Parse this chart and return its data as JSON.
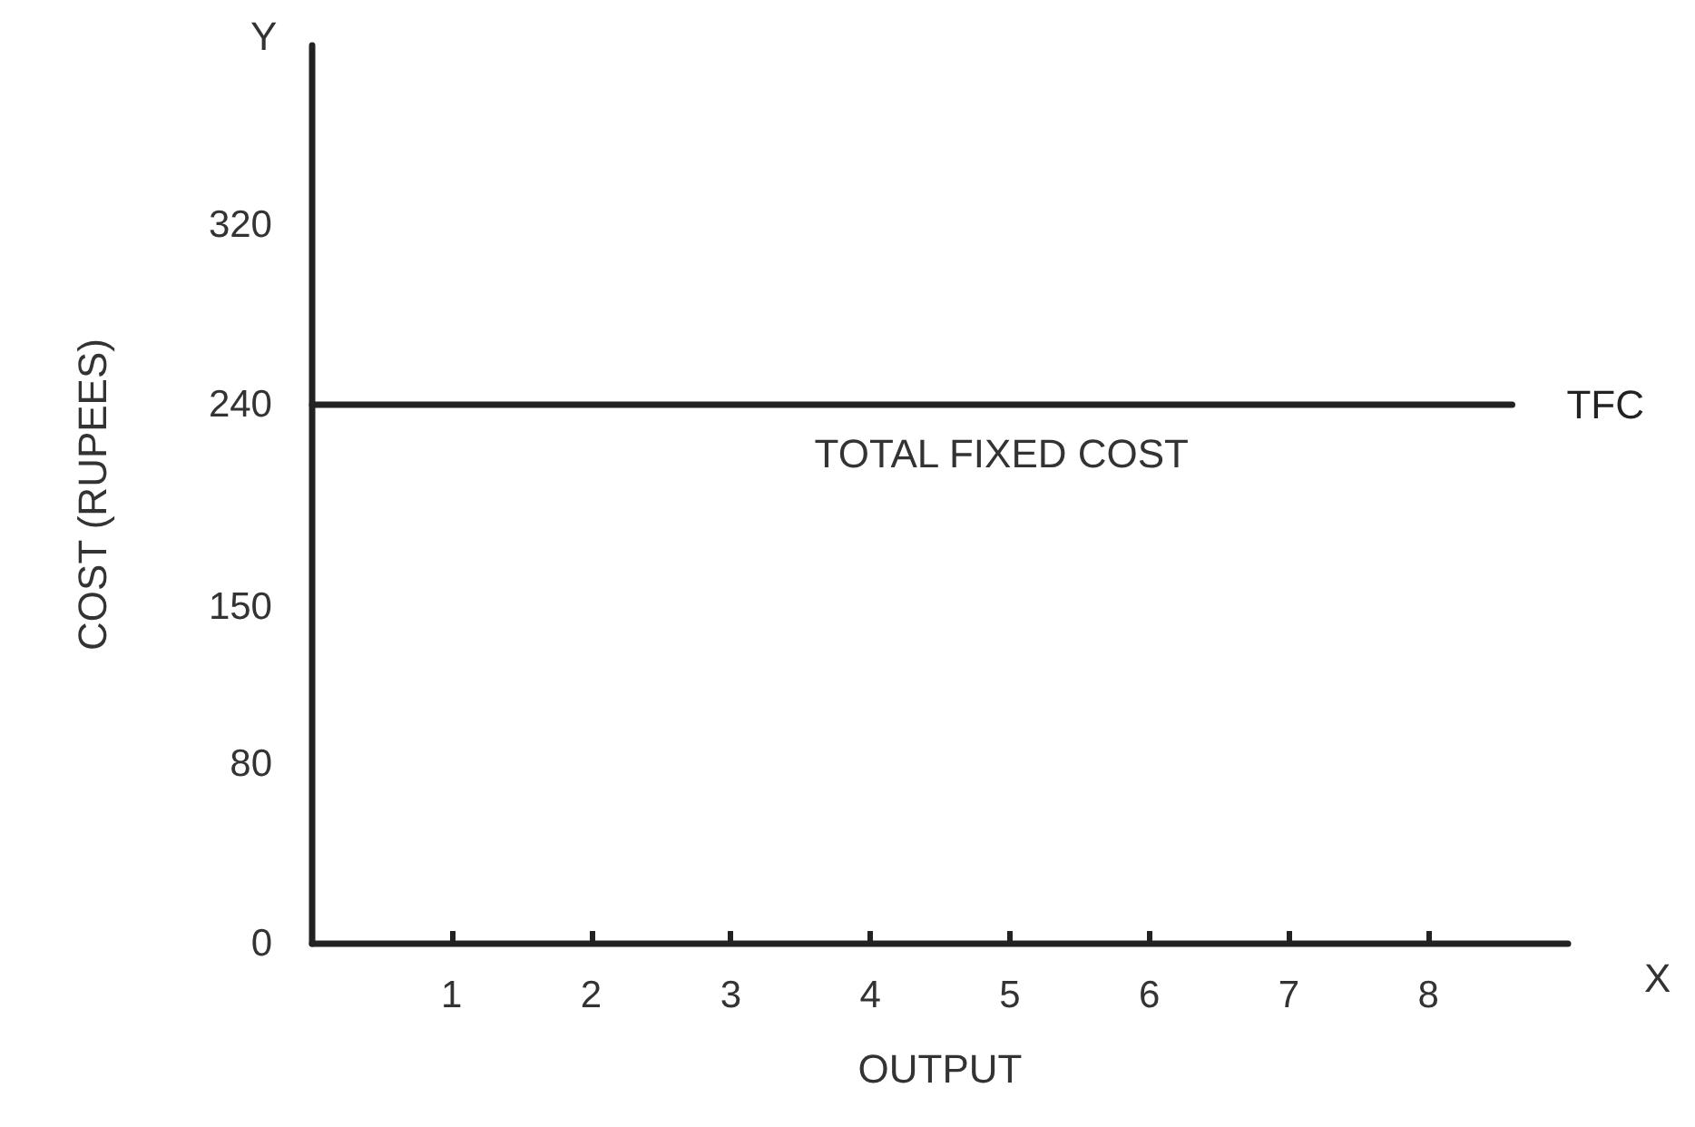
{
  "chart_data": {
    "type": "line",
    "xlabel": "OUTPUT",
    "ylabel": "COST (RUPEES)",
    "annotations": [
      {
        "text": "TOTAL FIXED COST",
        "x": 3.6,
        "y": 240
      },
      "X",
      "Y"
    ],
    "x": [
      0,
      8.6
    ],
    "series": [
      {
        "name": "TFC",
        "color": "#222222",
        "values": [
          240,
          240
        ]
      }
    ],
    "xlim": [
      0,
      9
    ],
    "xticks": [
      1,
      2,
      3,
      4,
      5,
      6,
      7,
      8
    ],
    "ylim": [
      0,
      400
    ],
    "yticks": [
      0,
      80,
      150,
      240,
      320
    ],
    "marker": "none",
    "line_style": "solid"
  }
}
